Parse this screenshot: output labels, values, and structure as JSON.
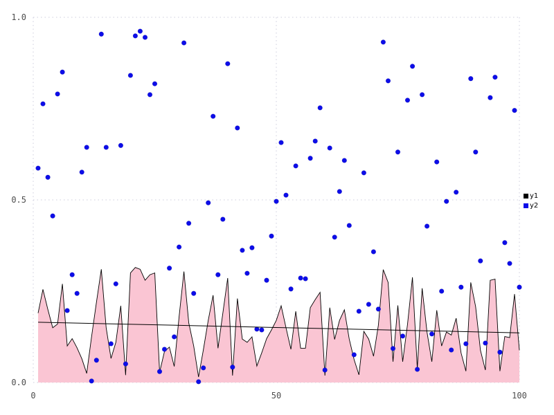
{
  "figure": {
    "background": "#ffffff",
    "grid_color": "#ccccdd",
    "tick_color": "#4d4d4d"
  },
  "chart_data": {
    "type": "area+scatter",
    "title": "",
    "xlabel": "",
    "ylabel": "",
    "xlim": [
      0,
      100
    ],
    "ylim": [
      0.0,
      1.0
    ],
    "grid": "dotted",
    "legend_position": "right-outside",
    "x_ticks": [
      {
        "label": "0",
        "value": 0
      },
      {
        "label": "50",
        "value": 50
      },
      {
        "label": "100",
        "value": 100
      }
    ],
    "y_ticks": [
      {
        "label": "0.0",
        "value": 0.0
      },
      {
        "label": "0.5",
        "value": 0.5
      },
      {
        "label": "1.0",
        "value": 1.0
      }
    ],
    "legend": [
      {
        "label": "y1",
        "color": "#000000"
      },
      {
        "label": "y2",
        "color": "#0d0de8"
      }
    ],
    "x": [
      1,
      2,
      3,
      4,
      5,
      6,
      7,
      8,
      9,
      10,
      11,
      12,
      13,
      14,
      15,
      16,
      17,
      18,
      19,
      20,
      21,
      22,
      23,
      24,
      25,
      26,
      27,
      28,
      29,
      30,
      31,
      32,
      33,
      34,
      35,
      36,
      37,
      38,
      39,
      40,
      41,
      42,
      43,
      44,
      45,
      46,
      47,
      48,
      49,
      50,
      51,
      52,
      53,
      54,
      55,
      56,
      57,
      58,
      59,
      60,
      61,
      62,
      63,
      64,
      65,
      66,
      67,
      68,
      69,
      70,
      71,
      72,
      73,
      74,
      75,
      76,
      77,
      78,
      79,
      80,
      81,
      82,
      83,
      84,
      85,
      86,
      87,
      88,
      89,
      90,
      91,
      92,
      93,
      94,
      95,
      96,
      97,
      98,
      99,
      100
    ],
    "series": [
      {
        "name": "y1",
        "type": "area",
        "fill_color": "#fac5d3",
        "line_color": "#000000",
        "values": [
          0.19,
          0.255,
          0.2,
          0.15,
          0.16,
          0.27,
          0.1,
          0.12,
          0.095,
          0.065,
          0.025,
          0.125,
          0.22,
          0.31,
          0.15,
          0.066,
          0.11,
          0.21,
          0.02,
          0.3,
          0.315,
          0.31,
          0.28,
          0.295,
          0.3,
          0.028,
          0.085,
          0.097,
          0.044,
          0.18,
          0.304,
          0.163,
          0.1,
          0.015,
          0.09,
          0.17,
          0.239,
          0.094,
          0.19,
          0.286,
          0.019,
          0.23,
          0.119,
          0.11,
          0.125,
          0.045,
          0.081,
          0.12,
          0.144,
          0.17,
          0.21,
          0.15,
          0.091,
          0.195,
          0.094,
          0.094,
          0.205,
          0.227,
          0.247,
          0.019,
          0.205,
          0.118,
          0.17,
          0.199,
          0.119,
          0.063,
          0.021,
          0.14,
          0.119,
          0.072,
          0.157,
          0.309,
          0.274,
          0.057,
          0.211,
          0.057,
          0.16,
          0.288,
          0.038,
          0.258,
          0.138,
          0.057,
          0.198,
          0.1,
          0.138,
          0.13,
          0.176,
          0.081,
          0.031,
          0.274,
          0.208,
          0.088,
          0.034,
          0.28,
          0.283,
          0.031,
          0.126,
          0.123,
          0.242,
          0.088
        ]
      },
      {
        "name": "y2",
        "type": "scatter",
        "point_color": "#0d0de8",
        "values": [
          0.587,
          0.763,
          0.562,
          0.456,
          0.79,
          0.85,
          0.197,
          0.295,
          0.244,
          0.576,
          0.644,
          0.004,
          0.061,
          0.954,
          0.644,
          0.106,
          0.27,
          0.649,
          0.051,
          0.841,
          0.949,
          0.962,
          0.945,
          0.788,
          0.818,
          0.03,
          0.091,
          0.313,
          0.125,
          0.371,
          0.93,
          0.436,
          0.244,
          0.002,
          0.04,
          0.492,
          0.729,
          0.295,
          0.447,
          0.873,
          0.042,
          0.697,
          0.362,
          0.299,
          0.369,
          0.146,
          0.144,
          0.28,
          0.401,
          0.496,
          0.657,
          0.513,
          0.256,
          0.593,
          0.286,
          0.284,
          0.614,
          0.661,
          0.752,
          0.034,
          0.642,
          0.398,
          0.523,
          0.608,
          0.43,
          0.076,
          0.195,
          0.574,
          0.214,
          0.358,
          0.201,
          0.932,
          0.826,
          0.093,
          0.631,
          0.127,
          0.773,
          0.866,
          0.036,
          0.788,
          0.428,
          0.133,
          0.604,
          0.25,
          0.496,
          0.089,
          0.521,
          0.261,
          0.106,
          0.832,
          0.631,
          0.333,
          0.108,
          0.78,
          0.836,
          0.083,
          0.383,
          0.326,
          0.745,
          0.261
        ]
      },
      {
        "name": "trend",
        "type": "line",
        "line_color": "#000000",
        "x": [
          1,
          100
        ],
        "values": [
          0.165,
          0.136
        ]
      }
    ]
  }
}
